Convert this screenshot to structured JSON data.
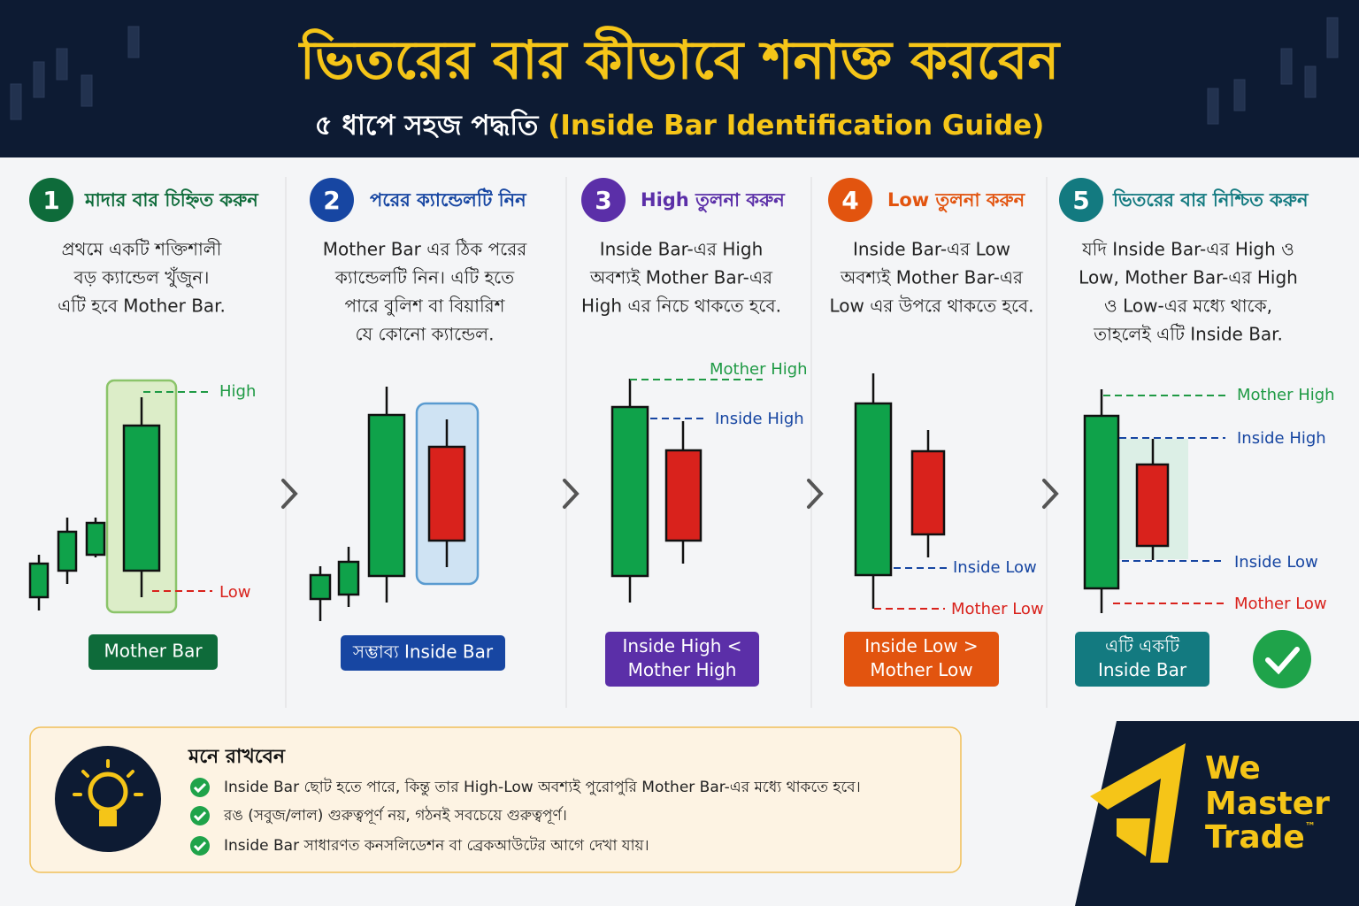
{
  "header": {
    "title": "ভিতরের বার কীভাবে শনাক্ত করবেন",
    "subtitle_bn": "৫ ধাপে সহজ পদ্ধতি",
    "subtitle_en": "(Inside Bar Identification Guide)"
  },
  "steps": [
    {
      "number": "1",
      "title": "মাদার বার চিহ্নিত করুন",
      "description": [
        "প্রথমে একটি শক্তিশালী",
        "বড় ক্যান্ডেল খুঁজুন।",
        "এটি হবে Mother Bar."
      ],
      "labels": [
        "High",
        "Low"
      ],
      "badge": [
        "Mother Bar"
      ]
    },
    {
      "number": "2",
      "title": "পরের ক্যান্ডেলটি নিন",
      "description": [
        "Mother Bar এর ঠিক পরের",
        "ক্যান্ডেলটি নিন। এটি হতে",
        "পারে বুলিশ বা বিয়ারিশ",
        "যে কোনো ক্যান্ডেল."
      ],
      "badge": [
        "সম্ভাব্য Inside Bar"
      ]
    },
    {
      "number": "3",
      "title": "High তুলনা করুন",
      "description": [
        "Inside Bar-এর High",
        "অবশ্যই Mother Bar-এর",
        "High এর নিচে থাকতে হবে."
      ],
      "labels": [
        "Mother High",
        "Inside High"
      ],
      "badge": [
        "Inside High <",
        "Mother High"
      ]
    },
    {
      "number": "4",
      "title": "Low তুলনা করুন",
      "description": [
        "Inside Bar-এর Low",
        "অবশ্যই Mother Bar-এর",
        "Low  এর উপরে থাকতে হবে."
      ],
      "labels": [
        "Inside Low",
        "Mother Low"
      ],
      "badge": [
        "Inside Low >",
        "Mother Low"
      ]
    },
    {
      "number": "5",
      "title": "ভিতরের বার নিশ্চিত করুন",
      "description": [
        "যদি Inside Bar-এর High ও",
        "Low, Mother Bar-এর High",
        "ও Low-এর মধ্যে থাকে,",
        "তাহলেই এটি Inside Bar."
      ],
      "labels": [
        "Mother High",
        "Inside High",
        "Inside Low",
        "Mother Low"
      ],
      "badge": [
        "এটি একটি",
        "Inside Bar"
      ]
    }
  ],
  "tips": {
    "title": "মনে রাখবেন",
    "items": [
      "Inside Bar ছোট হতে পারে, কিন্তু তার High-Low অবশ্যই পুরোপুরি Mother Bar-এর মধ্যে থাকতে হবে।",
      "রঙ (সবুজ/লাল) গুরুত্বপূর্ণ নয়, গঠনই সবচেয়ে গুরুত্বপূর্ণ।",
      "Inside Bar সাধারণত কনসলিডেশন বা ব্রেকআউটের আগে দেখা যায়।"
    ]
  },
  "logo": {
    "lines": [
      "We",
      "Master",
      "Trade"
    ],
    "trademark": "™"
  }
}
